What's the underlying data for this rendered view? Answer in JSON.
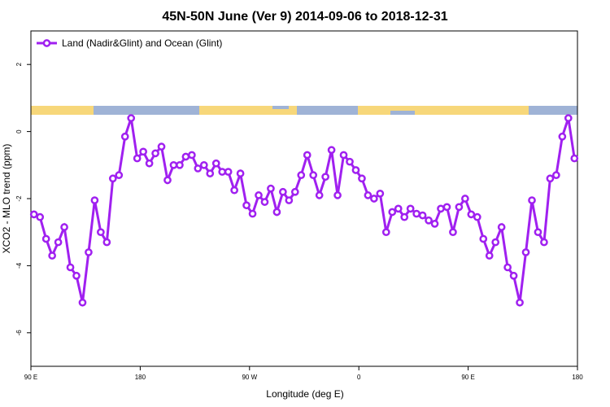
{
  "chart_data": {
    "type": "line",
    "title": "45N-50N June (Ver 9)   2014-09-06 to 2018-12-31",
    "x_label": "Longitude (deg E)",
    "y_label": "XCO2 - MLO trend (ppm)",
    "xlim": [
      90,
      540
    ],
    "ylim": [
      -7,
      3
    ],
    "xticks": [
      {
        "value": 90,
        "label": "90 E"
      },
      180,
      {
        "value": 270,
        "label": "90 W"
      },
      {
        "value": 360,
        "label": "0"
      },
      {
        "value": 450,
        "label": "90 E"
      },
      {
        "value": 540,
        "label": "180"
      }
    ],
    "yticks": [
      2,
      0,
      -2,
      -4,
      -6
    ],
    "legend": "top-left",
    "x": [
      92.5,
      97.5,
      102.5,
      107.5,
      112.5,
      117.5,
      122.5,
      127.5,
      132.5,
      137.5,
      142.5,
      147.5,
      152.5,
      157.5,
      162.5,
      167.5,
      172.5,
      177.5,
      182.5,
      187.5,
      192.5,
      197.5,
      202.5,
      207.5,
      212.5,
      217.5,
      222.5,
      227.5,
      232.5,
      237.5,
      242.5,
      247.5,
      252.5,
      257.5,
      262.5,
      267.5,
      272.5,
      277.5,
      282.5,
      287.5,
      292.5,
      297.5,
      302.5,
      307.5,
      312.5,
      317.5,
      322.5,
      327.5,
      332.5,
      337.5,
      342.5,
      347.5,
      352.5,
      357.5,
      362.5,
      367.5,
      372.5,
      377.5,
      382.5,
      387.5,
      392.5,
      397.5,
      402.5,
      407.5,
      412.5,
      417.5,
      422.5,
      427.5,
      432.5,
      437.5,
      442.5,
      447.5,
      452.5,
      457.5,
      462.5,
      467.5,
      472.5,
      477.5,
      482.5,
      487.5,
      492.5,
      497.5,
      502.5,
      507.5,
      512.5,
      517.5,
      522.5,
      527.5,
      532.5,
      537.5
    ],
    "series": [
      {
        "name": "Land (Nadir&Glint) and Ocean (Glint)",
        "color": "#a020f0",
        "values": [
          -2.47,
          -2.55,
          -3.2,
          -3.7,
          -3.3,
          -2.85,
          -4.05,
          -4.3,
          -5.1,
          -3.6,
          -2.05,
          -3.0,
          -3.3,
          -1.4,
          -1.3,
          -0.15,
          0.4,
          -0.8,
          -0.6,
          -0.95,
          -0.65,
          -0.45,
          -1.45,
          -1.0,
          -1.0,
          -0.75,
          -0.7,
          -1.1,
          -1.0,
          -1.25,
          -0.95,
          -1.2,
          -1.2,
          -1.75,
          -1.25,
          -2.2,
          -2.45,
          -1.9,
          -2.1,
          -1.7,
          -2.4,
          -1.8,
          -2.05,
          -1.8,
          -1.3,
          -0.7,
          -1.3,
          -1.9,
          -1.35,
          -0.55,
          -1.9,
          -0.7,
          -0.9,
          -1.15,
          -1.4,
          -1.9,
          -2.0,
          -1.85,
          -3.0,
          -2.4,
          -2.3,
          -2.55,
          -2.3,
          -2.45,
          -2.5,
          -2.65,
          -2.75,
          -2.3,
          -2.25,
          -3.0,
          -2.25,
          -2.0,
          -2.47,
          -2.55,
          -3.2,
          -3.7,
          -3.3,
          -2.85,
          -4.05,
          -4.3,
          -5.1,
          -3.6,
          -2.05,
          -3.0,
          -3.3,
          -1.4,
          -1.3,
          -0.15,
          0.4,
          -0.8
        ]
      }
    ]
  }
}
